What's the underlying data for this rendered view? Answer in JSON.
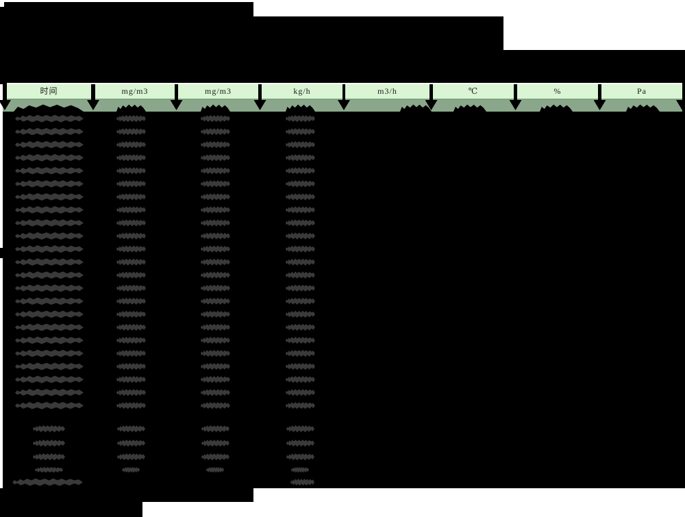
{
  "table": {
    "header": {
      "columns": [
        {
          "label": "时间"
        },
        {
          "label": "mg/m3"
        },
        {
          "label": "mg/m3"
        },
        {
          "label": "kg/h"
        },
        {
          "label": "m3/h"
        },
        {
          "label": "℃"
        },
        {
          "label": "%"
        },
        {
          "label": "Pa"
        }
      ]
    },
    "redaction": {
      "regular_data_rows": 23,
      "stat_rows": 3,
      "small_stat_rows": 1,
      "footer_rows": 1
    }
  },
  "colors": {
    "page_bg": "#ffffff",
    "redaction_block": "#000000",
    "redaction_glyph": "#3a3a3a",
    "header_cell_bg": "#d9f5d3",
    "header_cell_border": "#7fa27f",
    "header_text": "#1a1a1a",
    "first_row_band": "#8ba78b"
  }
}
